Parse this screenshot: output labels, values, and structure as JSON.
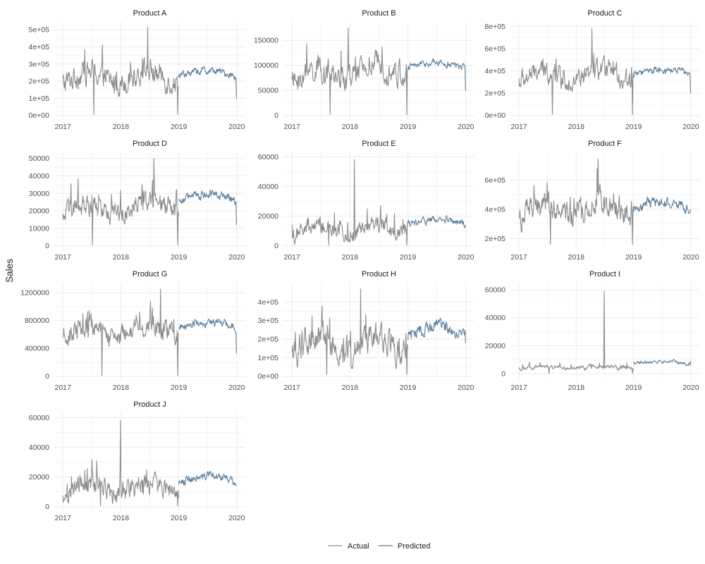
{
  "colors": {
    "actual": "#8c8c8c",
    "predicted": "#5b7f9c",
    "grid_major": "#ebebeb",
    "grid_minor": "#f5f5f5"
  },
  "legend": {
    "position": "bottom",
    "items": [
      "Actual",
      "Predicted"
    ]
  },
  "chart_data": {
    "type": "line",
    "layout": "faceted-small-multiples",
    "ylabel": "Sales",
    "xlabel": "",
    "grid": true,
    "x_ticks": [
      "2017",
      "2018",
      "2019",
      "2020"
    ],
    "x_range": [
      "2017-01-01",
      "2020-01-01"
    ],
    "actual_period": [
      "2017-01-01",
      "2019-01-01"
    ],
    "predicted_period": [
      "2019-01-01",
      "2020-01-01"
    ],
    "panels": [
      {
        "name": "Product A",
        "ylim": [
          0,
          520000
        ],
        "yticks": [
          0,
          100000,
          200000,
          300000,
          400000,
          500000
        ],
        "ytick_labels": [
          "0e+00",
          "1e+05",
          "2e+05",
          "3e+05",
          "4e+05",
          "5e+05"
        ],
        "actual": {
          "level_2017": 220000,
          "level_2018": 230000,
          "noise": 70000,
          "peak": 520000,
          "min": 0
        },
        "predicted": {
          "level": 230000,
          "noise": 25000,
          "end": 100000
        }
      },
      {
        "name": "Product B",
        "ylim": [
          0,
          178000
        ],
        "yticks": [
          0,
          50000,
          100000,
          150000
        ],
        "ytick_labels": [
          "0",
          "50000",
          "100000",
          "150000"
        ],
        "actual": {
          "level_2017": 75000,
          "level_2018": 95000,
          "noise": 25000,
          "peak": 175000,
          "min": 0
        },
        "predicted": {
          "level": 95000,
          "noise": 8000,
          "end": 50000
        }
      },
      {
        "name": "Product C",
        "ylim": [
          0,
          800000
        ],
        "yticks": [
          0,
          200000,
          400000,
          600000,
          800000
        ],
        "ytick_labels": [
          "0e+00",
          "2e+05",
          "4e+05",
          "6e+05",
          "8e+05"
        ],
        "actual": {
          "level_2017": 350000,
          "level_2018": 370000,
          "noise": 90000,
          "peak": 780000,
          "min": 0
        },
        "predicted": {
          "level": 370000,
          "noise": 35000,
          "end": 200000
        }
      },
      {
        "name": "Product D",
        "ylim": [
          0,
          51000
        ],
        "yticks": [
          0,
          10000,
          20000,
          30000,
          40000,
          50000
        ],
        "ytick_labels": [
          "0",
          "10000",
          "20000",
          "30000",
          "40000",
          "50000"
        ],
        "actual": {
          "level_2017": 20000,
          "level_2018": 24000,
          "noise": 6000,
          "peak": 50000,
          "min": 0
        },
        "predicted": {
          "level": 26000,
          "noise": 3000,
          "end": 12000
        }
      },
      {
        "name": "Product E",
        "ylim": [
          0,
          60000
        ],
        "yticks": [
          0,
          20000,
          40000,
          60000
        ],
        "ytick_labels": [
          "0",
          "20000",
          "40000",
          "60000"
        ],
        "actual": {
          "level_2017": 9000,
          "level_2018": 14000,
          "noise": 6000,
          "peak": 58000,
          "min": 0
        },
        "predicted": {
          "level": 14000,
          "noise": 3000,
          "end": 14000
        }
      },
      {
        "name": "Product F",
        "ylim": [
          150000,
          760000
        ],
        "yticks": [
          200000,
          400000,
          600000
        ],
        "ytick_labels": [
          "2e+05",
          "4e+05",
          "6e+05"
        ],
        "actual": {
          "level_2017": 380000,
          "level_2018": 420000,
          "noise": 90000,
          "peak": 745000,
          "min": 160000
        },
        "predicted": {
          "level": 400000,
          "noise": 40000,
          "end": 400000
        }
      },
      {
        "name": "Product G",
        "ylim": [
          0,
          1280000
        ],
        "yticks": [
          0,
          400000,
          800000,
          1200000
        ],
        "ytick_labels": [
          "0",
          "400000",
          "800000",
          "1200000"
        ],
        "actual": {
          "level_2017": 620000,
          "level_2018": 700000,
          "noise": 150000,
          "peak": 1250000,
          "min": 0
        },
        "predicted": {
          "level": 700000,
          "noise": 70000,
          "end": 330000
        }
      },
      {
        "name": "Product H",
        "ylim": [
          0,
          480000
        ],
        "yticks": [
          0,
          100000,
          200000,
          300000,
          400000
        ],
        "ytick_labels": [
          "0e+00",
          "1e+05",
          "2e+05",
          "3e+05",
          "4e+05"
        ],
        "actual": {
          "level_2017": 170000,
          "level_2018": 190000,
          "noise": 80000,
          "peak": 470000,
          "min": 10000
        },
        "predicted": {
          "level": 220000,
          "noise": 40000,
          "end": 180000
        }
      },
      {
        "name": "Product I",
        "ylim": [
          -2000,
          62000
        ],
        "yticks": [
          0,
          20000,
          40000,
          60000
        ],
        "ytick_labels": [
          "0",
          "20000",
          "40000",
          "60000"
        ],
        "actual": {
          "level_2017": 4000,
          "level_2018": 4500,
          "noise": 1500,
          "peak": 59000,
          "min": 0
        },
        "predicted": {
          "level": 7000,
          "noise": 1500,
          "end": 9000
        }
      },
      {
        "name": "Product J",
        "ylim": [
          0,
          60000
        ],
        "yticks": [
          0,
          20000,
          40000,
          60000
        ],
        "ytick_labels": [
          "0",
          "20000",
          "40000",
          "60000"
        ],
        "actual": {
          "level_2017": 12000,
          "level_2018": 14000,
          "noise": 7000,
          "peak": 58000,
          "min": 0
        },
        "predicted": {
          "level": 16000,
          "noise": 3500,
          "end": 14000
        }
      }
    ]
  }
}
